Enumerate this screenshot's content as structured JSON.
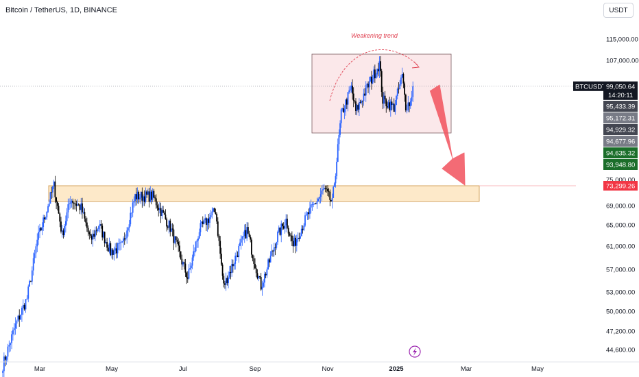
{
  "header": {
    "title": "Bitcoin / TetherUS, 1D, BINANCE",
    "currency": "USDT"
  },
  "annotation": {
    "label": "Weakening trend"
  },
  "price_axis": {
    "ticks": [
      "115,000.00",
      "107,000.00",
      "75,000.00",
      "69,000.00",
      "65,000.00",
      "61,000.00",
      "57,000.00",
      "53,000.00",
      "50,000.00",
      "47,200.00",
      "44,600.00"
    ]
  },
  "price_tags": {
    "symbol": "BTCUSDT",
    "last_price": "99,050.64",
    "countdown": "14:20:11",
    "levels": [
      {
        "text": "95,433.39",
        "color": "#434651"
      },
      {
        "text": "95,172.31",
        "color": "#787b86"
      },
      {
        "text": "94,929.32",
        "color": "#434651"
      },
      {
        "text": "94,677.96",
        "color": "#787b86"
      },
      {
        "text": "94,635.32",
        "color": "#1b6e2a"
      },
      {
        "text": "93,948.80",
        "color": "#1b6e2a"
      }
    ],
    "support_price": "73,299.26"
  },
  "time_axis": {
    "ticks": [
      {
        "label": "Mar",
        "bold": false
      },
      {
        "label": "May",
        "bold": false
      },
      {
        "label": "Jul",
        "bold": false
      },
      {
        "label": "Sep",
        "bold": false
      },
      {
        "label": "Nov",
        "bold": false
      },
      {
        "label": "2025",
        "bold": true
      },
      {
        "label": "Mar",
        "bold": false
      },
      {
        "label": "May",
        "bold": false
      }
    ]
  },
  "colors": {
    "up_candle": "#2962ff",
    "down_candle": "#000000",
    "support_zone_fill": "#fde9c9",
    "support_zone_border": "#d4a35e",
    "consolidation_fill": "#fbe8ea",
    "consolidation_border": "#7a5a5f",
    "arrow": "#f2525d",
    "price_label_bg": "#131722",
    "support_tag": "#f23645"
  },
  "chart_data": {
    "type": "candlestick",
    "symbol": "BTCUSDT",
    "interval": "1D",
    "exchange": "BINANCE",
    "log_scale": true,
    "x_range": [
      "2024-02-01",
      "2025-06-05"
    ],
    "y_range": [
      43000,
      121000
    ],
    "last_price": 99050.64,
    "support_level": 73299.26,
    "anchors": [
      [
        "2024-02-01",
        42500
      ],
      [
        "2024-02-10",
        47500
      ],
      [
        "2024-02-20",
        52000
      ],
      [
        "2024-02-28",
        62000
      ],
      [
        "2024-03-05",
        66500
      ],
      [
        "2024-03-13",
        73500
      ],
      [
        "2024-03-20",
        63000
      ],
      [
        "2024-03-27",
        70500
      ],
      [
        "2024-04-05",
        68500
      ],
      [
        "2024-04-13",
        62000
      ],
      [
        "2024-04-20",
        65000
      ],
      [
        "2024-04-30",
        60000
      ],
      [
        "2024-05-10",
        61000
      ],
      [
        "2024-05-21",
        71000
      ],
      [
        "2024-06-05",
        71000
      ],
      [
        "2024-06-20",
        64500
      ],
      [
        "2024-07-05",
        55500
      ],
      [
        "2024-07-15",
        64000
      ],
      [
        "2024-07-29",
        68000
      ],
      [
        "2024-08-05",
        54000
      ],
      [
        "2024-08-15",
        59000
      ],
      [
        "2024-08-25",
        64000
      ],
      [
        "2024-09-06",
        54000
      ],
      [
        "2024-09-20",
        63000
      ],
      [
        "2024-09-27",
        66000
      ],
      [
        "2024-10-03",
        61000
      ],
      [
        "2024-10-15",
        67000
      ],
      [
        "2024-10-29",
        72500
      ],
      [
        "2024-11-05",
        69500
      ],
      [
        "2024-11-13",
        91000
      ],
      [
        "2024-11-22",
        98500
      ],
      [
        "2024-11-26",
        91800
      ],
      [
        "2024-12-05",
        98000
      ],
      [
        "2024-12-17",
        106000
      ],
      [
        "2024-12-20",
        95000
      ],
      [
        "2024-12-30",
        93000
      ],
      [
        "2025-01-06",
        102000
      ],
      [
        "2025-01-09",
        93500
      ],
      [
        "2025-01-13",
        94500
      ],
      [
        "2025-01-15",
        99050.64
      ]
    ]
  }
}
